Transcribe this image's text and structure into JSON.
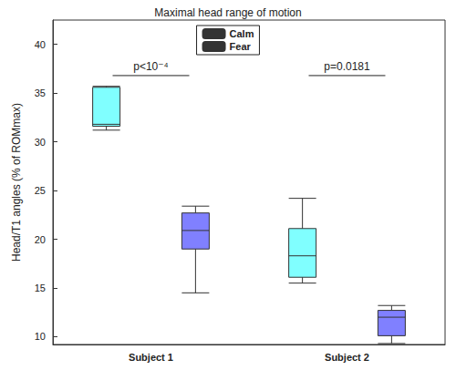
{
  "chart_data": {
    "type": "boxplot",
    "title": "Maximal head range of motion",
    "y_label": "Head/T1 angles (% of ROMmax)",
    "categories": [
      "Subject 1",
      "Subject 2"
    ],
    "series": [
      {
        "name": "Calm",
        "color": "#80ffff",
        "values": [
          [
            31.2,
            31.6,
            31.8,
            35.6,
            35.7
          ],
          [
            15.5,
            16.1,
            18.3,
            21.1,
            24.2
          ]
        ]
      },
      {
        "name": "Fear",
        "color": "#8080ff",
        "values": [
          [
            14.5,
            19.0,
            20.9,
            22.7,
            23.4
          ],
          [
            9.3,
            10.1,
            12.0,
            12.7,
            13.2
          ]
        ]
      }
    ],
    "ylim": [
      9.2,
      42.5
    ],
    "yticks": [
      10,
      15,
      20,
      25,
      30,
      35,
      40
    ],
    "grid": false,
    "legend": "top",
    "annotations": [
      {
        "text": "p<10⁻⁴",
        "category": "Subject 1",
        "y": 36.8
      },
      {
        "text": "p=0.0181",
        "category": "Subject 2",
        "y": 36.8
      }
    ]
  }
}
